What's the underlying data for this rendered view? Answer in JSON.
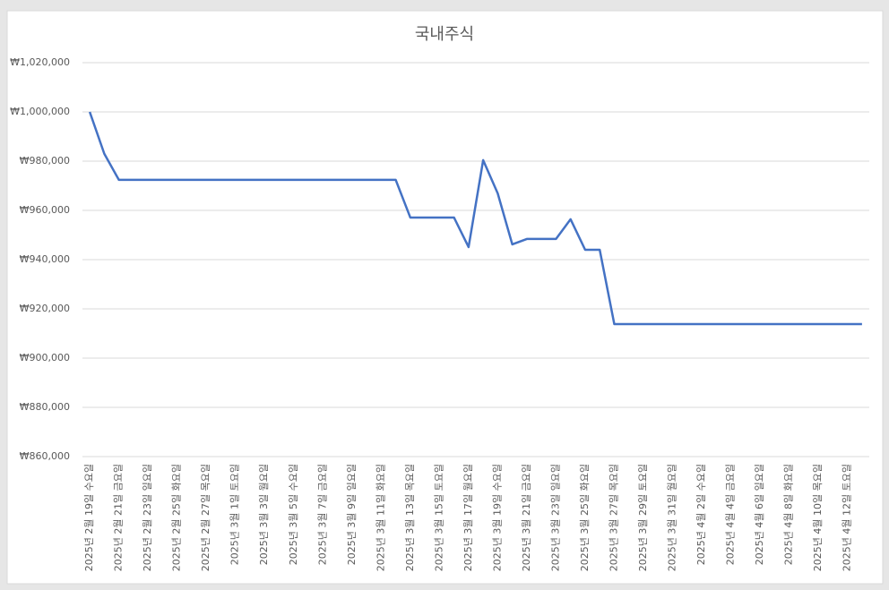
{
  "chart_data": {
    "type": "line",
    "title": "국내주식",
    "categories": [
      "2025년 2월 19일 수요일",
      null,
      "2025년 2월 21일 금요일",
      null,
      "2025년 2월 23일 일요일",
      null,
      "2025년 2월 25일 화요일",
      null,
      "2025년 2월 27일 목요일",
      null,
      "2025년 3월 1일 토요일",
      null,
      "2025년 3월 3일 월요일",
      null,
      "2025년 3월 5일 수요일",
      null,
      "2025년 3월 7일 금요일",
      null,
      "2025년 3월 9일 일요일",
      null,
      "2025년 3월 11일 화요일",
      null,
      "2025년 3월 13일 목요일",
      null,
      "2025년 3월 15일 토요일",
      null,
      "2025년 3월 17일 월요일",
      null,
      "2025년 3월 19일 수요일",
      null,
      "2025년 3월 21일 금요일",
      null,
      "2025년 3월 23일 일요일",
      null,
      "2025년 3월 25일 화요일",
      null,
      "2025년 3월 27일 목요일",
      null,
      "2025년 3월 29일 토요일",
      null,
      "2025년 3월 31일 월요일",
      null,
      "2025년 4월 2일 수요일",
      null,
      "2025년 4월 4일 금요일",
      null,
      "2025년 4월 6일 일요일",
      null,
      "2025년 4월 8일 화요일",
      null,
      "2025년 4월 10일 목요일",
      null,
      "2025년 4월 12일 토요일",
      null
    ],
    "values": [
      1000000,
      983000,
      972400,
      972400,
      972400,
      972400,
      972400,
      972400,
      972400,
      972400,
      972400,
      972400,
      972400,
      972400,
      972400,
      972400,
      972400,
      972400,
      972400,
      972400,
      972400,
      972400,
      957100,
      957100,
      957100,
      957100,
      945100,
      980400,
      966900,
      946200,
      948400,
      948400,
      948400,
      956400,
      944000,
      944000,
      913800,
      913800,
      913800,
      913800,
      913800,
      913800,
      913800,
      913800,
      913800,
      913800,
      913800,
      913800,
      913800,
      913800,
      913800,
      913800,
      913800,
      913800
    ],
    "color": "#4472c4",
    "ylim": [
      860000,
      1020000
    ],
    "yticks": [
      {
        "value": 860000,
        "label": "₩860,000"
      },
      {
        "value": 880000,
        "label": "₩880,000"
      },
      {
        "value": 900000,
        "label": "₩900,000"
      },
      {
        "value": 920000,
        "label": "₩920,000"
      },
      {
        "value": 940000,
        "label": "₩940,000"
      },
      {
        "value": 960000,
        "label": "₩960,000"
      },
      {
        "value": 980000,
        "label": "₩980,000"
      },
      {
        "value": 1000000,
        "label": "₩1,000,000"
      },
      {
        "value": 1020000,
        "label": "₩1,020,000"
      }
    ],
    "grid": true
  }
}
